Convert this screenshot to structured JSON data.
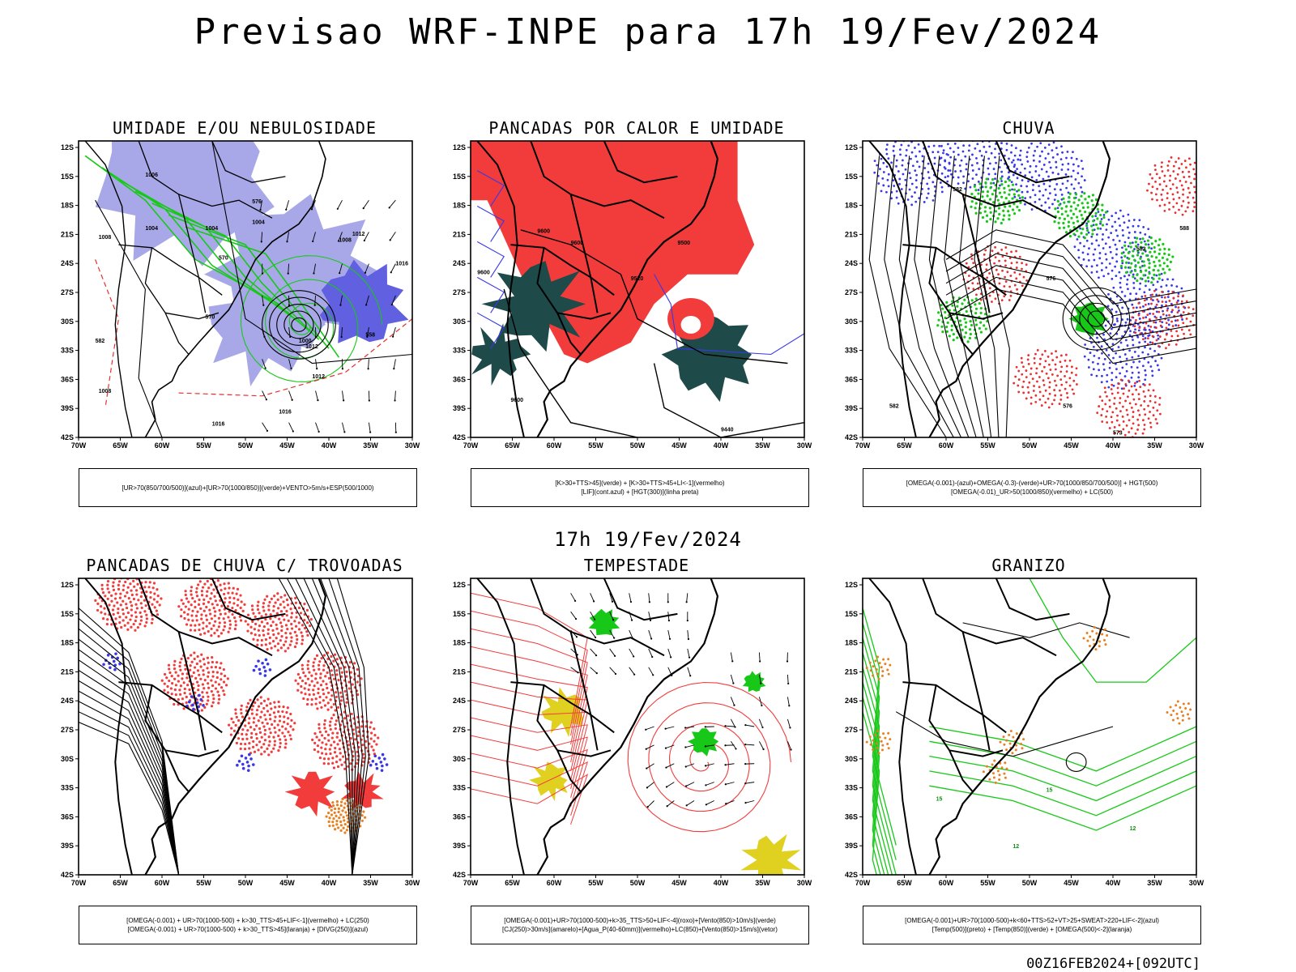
{
  "title": "Previsao WRF-INPE  para 17h 19/Fev/2024",
  "mid_title": "17h 19/Fev/2024",
  "run_stamp": "00Z16FEB2024+[092UTC]",
  "axes": {
    "lat_ticks": [
      "12S",
      "15S",
      "18S",
      "21S",
      "24S",
      "27S",
      "30S",
      "33S",
      "36S",
      "39S",
      "42S"
    ],
    "lon_ticks": [
      "70W",
      "65W",
      "60W",
      "55W",
      "50W",
      "45W",
      "40W",
      "35W",
      "30W"
    ]
  },
  "panels": [
    {
      "id": "umidade",
      "title": "UMIDADE E/OU NEBULOSIDADE",
      "legend": [
        "[UR>70(850/700/500)](azul)+[UR>70(1000/850)](verde)+VENTO>5m/s+ESP(500/1000)"
      ],
      "labels": [
        "1006",
        "1004",
        "1004",
        "1004",
        "1008",
        "1008",
        "1012",
        "1016",
        "1016",
        "1012",
        "1012",
        "1016",
        "1008",
        "576",
        "570",
        "570",
        "582",
        "558",
        "1000"
      ]
    },
    {
      "id": "pancadas-calor",
      "title": "PANCADAS POR CALOR E UMIDADE",
      "legend": [
        "[K>30+TTS>45](verde) + [K>30+TTS>45+LI<-1](vermelho)",
        "[LIF](cont.azul) + [HGT(300)](linha preta)"
      ],
      "labels": [
        "9600",
        "9600",
        "9500",
        "9520",
        "9600",
        "9600",
        "9440"
      ]
    },
    {
      "id": "chuva",
      "title": "CHUVA",
      "legend": [
        "[OMEGA(-0.001)-(azul)+OMEGA(-0.3)-(verde)+UR>70(1000/850/700/500)] + HGT(500)",
        "[OMEGA(-0.01)_UR>50(1000/850)(vermelho) + LC(500)"
      ],
      "labels": [
        "576",
        "582",
        "576",
        "573",
        "588",
        "582",
        "582"
      ]
    },
    {
      "id": "pancadas-trovoadas",
      "title": "PANCADAS DE CHUVA C/ TROVOADAS",
      "legend": [
        "[OMEGA(-0.001) + UR>70(1000-500) + k>30_TTS>45+LIF<-1](vermelho) + LC(250)",
        "[OMEGA(-0.001) + UR>70(1000-500) + k>30_TTS>45](laranja) + [DIVG(250)](azul)"
      ],
      "labels": []
    },
    {
      "id": "tempestade",
      "title": "TEMPESTADE",
      "legend": [
        "[OMEGA(-0.001)+UR>70(1000-500)+k>35_TTS>50+LIF<-4](roxo)+[Vento(850)>10m/s](verde)",
        "[CJ(250)>30m/s](amarelo)+[Agua_P(40-60mm)](vermelho)+LC(850)+[Vento(850)>15m/s](vetor)"
      ],
      "labels": []
    },
    {
      "id": "granizo",
      "title": "GRANIZO",
      "legend": [
        "[OMEGA(-0.001)+UR>70(1000-500)+k<60+TTS>52+VT>25+SWEAT>220+LIF<-2](azul)",
        "[Temp(500)](preto) + [Temp(850)](verde) + [OMEGA(500)<-2](laranja)"
      ],
      "labels": [
        "15",
        "15",
        "12",
        "12"
      ]
    }
  ],
  "colors": {
    "map_border": "#000000",
    "humidity_blue": "#a8a8e8",
    "humidity_green": "#18c818",
    "thickness_red": "#e83030",
    "storm_red": "#f23c3c",
    "dark_teal": "#1f4a4a",
    "lif_blue": "#3838e8",
    "jet_yellow": "#e0d020",
    "hail_orange": "#e88020"
  }
}
